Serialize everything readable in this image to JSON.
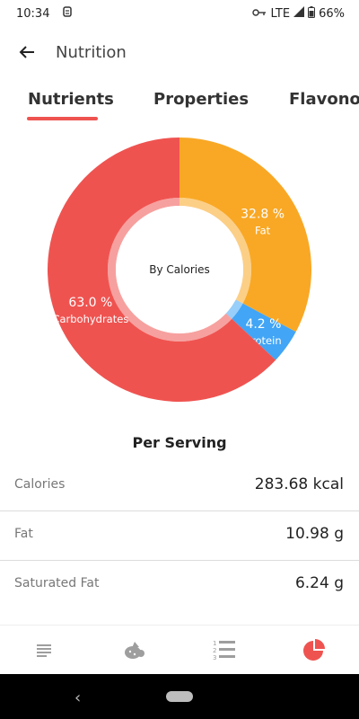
{
  "status_bar": {
    "time": "10:34",
    "network": "LTE",
    "battery": "66%"
  },
  "app_bar": {
    "title": "Nutrition"
  },
  "tabs": [
    {
      "label": "Nutrients",
      "selected": true
    },
    {
      "label": "Properties",
      "selected": false
    },
    {
      "label": "Flavonoids",
      "selected": false
    }
  ],
  "chart_data": {
    "type": "pie",
    "title": "By Calories",
    "series": [
      {
        "name": "Fat",
        "value": 32.8,
        "label": "32.8 %",
        "color": "#f9a825"
      },
      {
        "name": "Protein",
        "value": 4.2,
        "label": "4.2 %",
        "color": "#42a5f5"
      },
      {
        "name": "Carbohydrates",
        "value": 63.0,
        "label": "63.0 %",
        "color": "#ef5350"
      }
    ]
  },
  "per_serving_title": "Per Serving",
  "nutrients": [
    {
      "label": "Calories",
      "value": "283.68 kcal"
    },
    {
      "label": "Fat",
      "value": "10.98 g"
    },
    {
      "label": "Saturated Fat",
      "value": "6.24 g"
    }
  ],
  "bottom_nav": [
    {
      "icon": "list-icon",
      "selected": false
    },
    {
      "icon": "ingredients-icon",
      "selected": false
    },
    {
      "icon": "numbered-steps-icon",
      "selected": false
    },
    {
      "icon": "pie-chart-icon",
      "selected": true
    }
  ],
  "colors": {
    "accent": "#ef5350",
    "nav_inactive": "#9e9e9e"
  }
}
